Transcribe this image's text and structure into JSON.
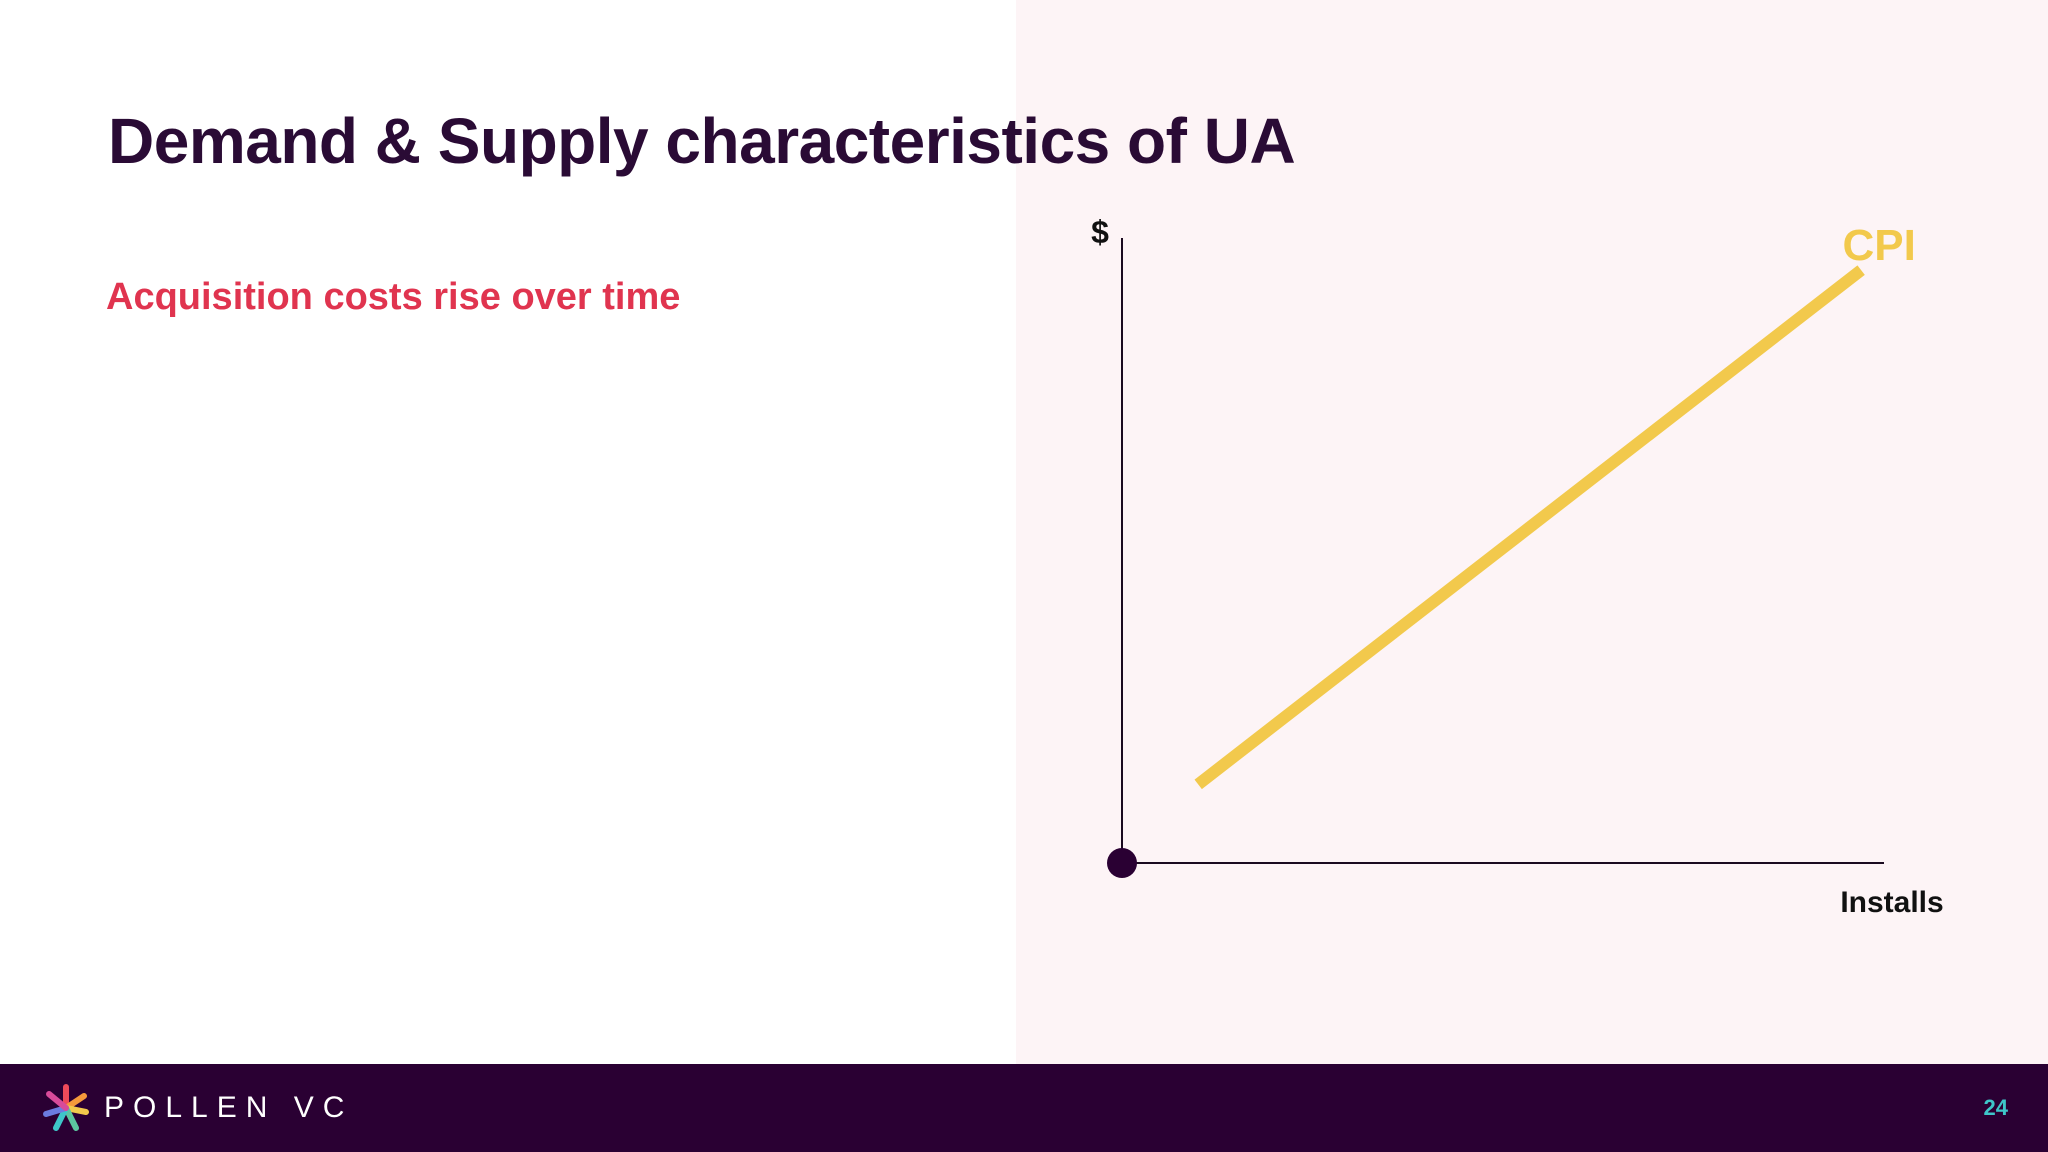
{
  "slide": {
    "title": "Demand & Supply characteristics of UA",
    "subtitle": "Acquisition costs rise over time"
  },
  "chart_data": {
    "type": "line",
    "title": "",
    "xlabel": "Installs",
    "ylabel": "$",
    "grid": false,
    "series": [
      {
        "name": "CPI",
        "color": "#f2c94c",
        "x": [
          0.1,
          0.97
        ],
        "y": [
          0.13,
          0.98
        ]
      }
    ],
    "xlim": [
      0,
      1
    ],
    "ylim": [
      0,
      1
    ],
    "colors": {
      "axis": "#1a0a1f",
      "origin": "#2a0033",
      "label": "#111111"
    }
  },
  "footer": {
    "brand": "POLLEN VC",
    "page_number": "24",
    "colors": {
      "background": "#2a0033",
      "page_number": "#3ec6c9"
    }
  }
}
